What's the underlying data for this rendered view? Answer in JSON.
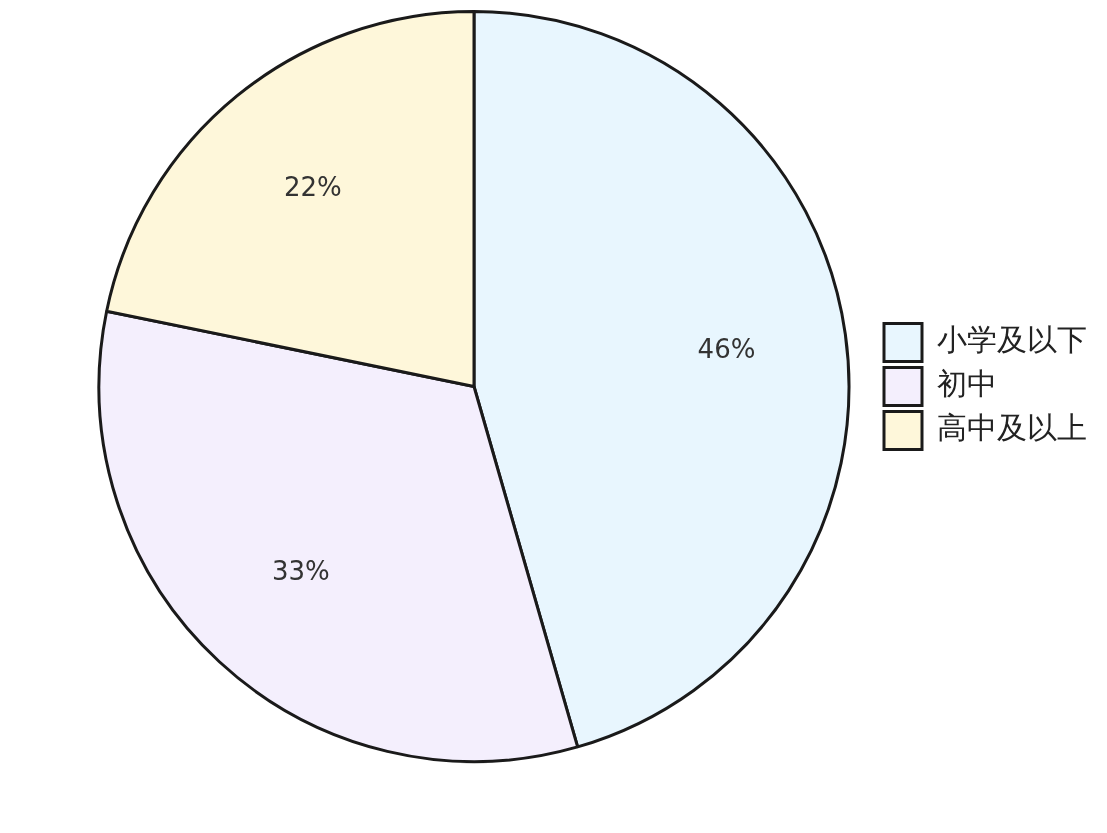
{
  "chart_data": {
    "type": "pie",
    "categories": [
      "小学及以下",
      "初中",
      "高中及以上"
    ],
    "values": [
      46,
      33,
      22
    ],
    "colors": [
      "#e8f6fe",
      "#f4effd",
      "#fef7da"
    ],
    "value_labels": [
      "46%",
      "33%",
      "22%"
    ],
    "legend": "right"
  }
}
